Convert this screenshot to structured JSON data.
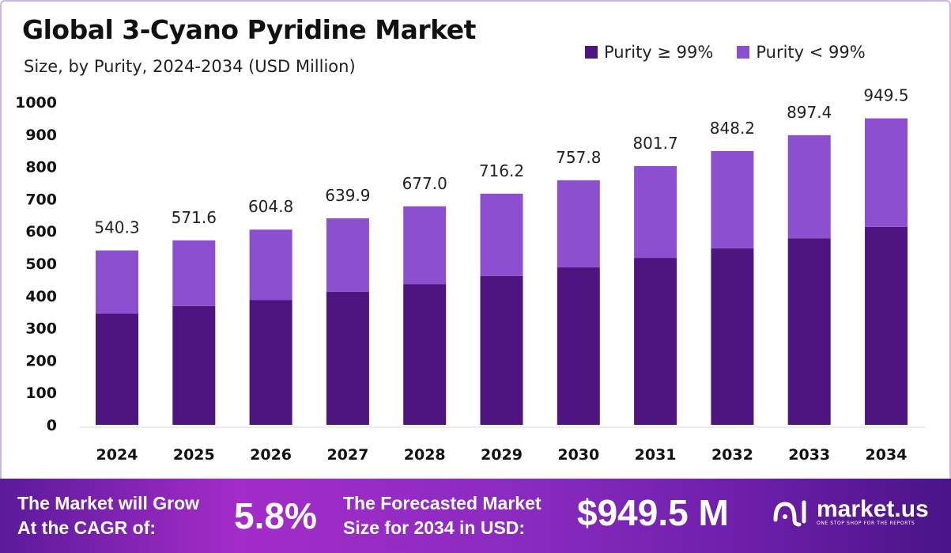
{
  "chart_data": {
    "type": "bar",
    "stacked": true,
    "title": "Global 3-Cyano Pyridine Market",
    "subtitle": "Size, by Purity, 2024-2034 (USD Million)",
    "categories": [
      "2024",
      "2025",
      "2026",
      "2027",
      "2028",
      "2029",
      "2030",
      "2031",
      "2032",
      "2033",
      "2034"
    ],
    "series": [
      {
        "name": "Purity ≥ 99%",
        "color": "#4E1580",
        "values": [
          345,
          368,
          387,
          412,
          436,
          461,
          488,
          517,
          547,
          578,
          613
        ]
      },
      {
        "name": "Purity < 99%",
        "color": "#8B4FCF",
        "values": [
          195.3,
          203.6,
          217.8,
          227.9,
          241.0,
          255.2,
          269.8,
          284.7,
          301.2,
          319.4,
          336.5
        ]
      }
    ],
    "totals": [
      "540.3",
      "571.6",
      "604.8",
      "639.9",
      "677.0",
      "716.2",
      "757.8",
      "801.7",
      "848.2",
      "897.4",
      "949.5"
    ],
    "yticks": [
      "0",
      "100",
      "200",
      "300",
      "400",
      "500",
      "600",
      "700",
      "800",
      "900",
      "1000"
    ],
    "ylim": [
      0,
      1000
    ],
    "xlabel": "",
    "ylabel": "",
    "grid": false,
    "legend_position": "top-right"
  },
  "footer": {
    "cagr_label_1": "The Market will Grow",
    "cagr_label_2": "At the CAGR of:",
    "cagr_value": "5.8%",
    "forecast_label_1": "The Forecasted Market",
    "forecast_label_2": "Size for 2034 in USD:",
    "forecast_value": "$949.5 M",
    "brand_name": "market.us",
    "brand_tagline": "ONE STOP SHOP FOR THE REPORTS"
  }
}
